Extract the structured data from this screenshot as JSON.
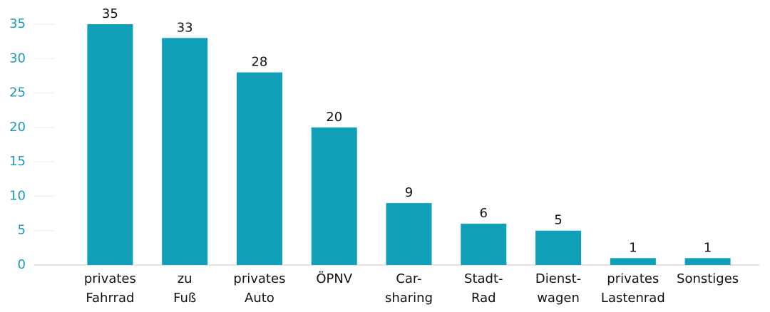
{
  "chart_data": {
    "type": "bar",
    "categories": [
      "privates Fahrrad",
      "zu Fuß",
      "privates Auto",
      "ÖPNV",
      "Car-sharing",
      "Stadt-Rad",
      "Dienst-wagen",
      "privates Lastenrad",
      "Sonstiges"
    ],
    "values": [
      35,
      33,
      28,
      20,
      9,
      6,
      5,
      1,
      1
    ],
    "color": "#0fa0b8",
    "ylim": [
      0,
      35
    ],
    "yticks": [
      0,
      5,
      10,
      15,
      20,
      25,
      30,
      35
    ]
  }
}
